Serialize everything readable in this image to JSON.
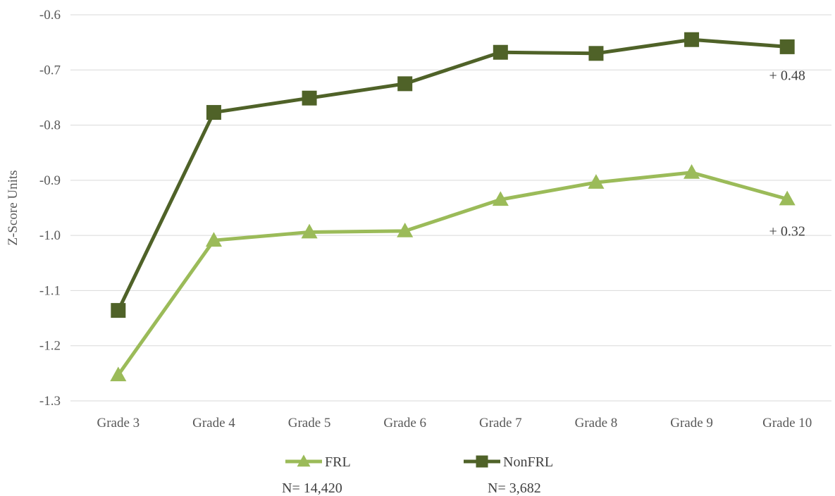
{
  "chart_data": {
    "type": "line",
    "title": "",
    "ylabel": "Z-Score Units",
    "xlabel": "",
    "ylim": [
      -1.3,
      -0.6
    ],
    "yticks": [
      -0.6,
      -0.7,
      -0.8,
      -0.9,
      -1.0,
      -1.1,
      -1.2,
      -1.3
    ],
    "ytick_labels": [
      "-0.6",
      "-0.7",
      "-0.8",
      "-0.9",
      "-1.0",
      "-1.1",
      "-1.2",
      "-1.3"
    ],
    "grid": true,
    "categories": [
      "Grade 3",
      "Grade 4",
      "Grade 5",
      "Grade 6",
      "Grade 7",
      "Grade 8",
      "Grade 9",
      "Grade 10"
    ],
    "series": [
      {
        "name": "FRL",
        "n_label": "N= 14,420",
        "marker": "triangle",
        "color": "#9bbb59",
        "values": [
          -1.253,
          -1.009,
          -0.994,
          -0.992,
          -0.935,
          -0.904,
          -0.886,
          -0.934
        ],
        "end_annotation": "+ 0.32"
      },
      {
        "name": "NonFRL",
        "n_label": "N= 3,682",
        "marker": "square",
        "color": "#4f6228",
        "values": [
          -1.136,
          -0.777,
          -0.751,
          -0.725,
          -0.668,
          -0.67,
          -0.645,
          -0.658
        ],
        "end_annotation": "+ 0.48"
      }
    ],
    "legend_position": "bottom-center"
  }
}
